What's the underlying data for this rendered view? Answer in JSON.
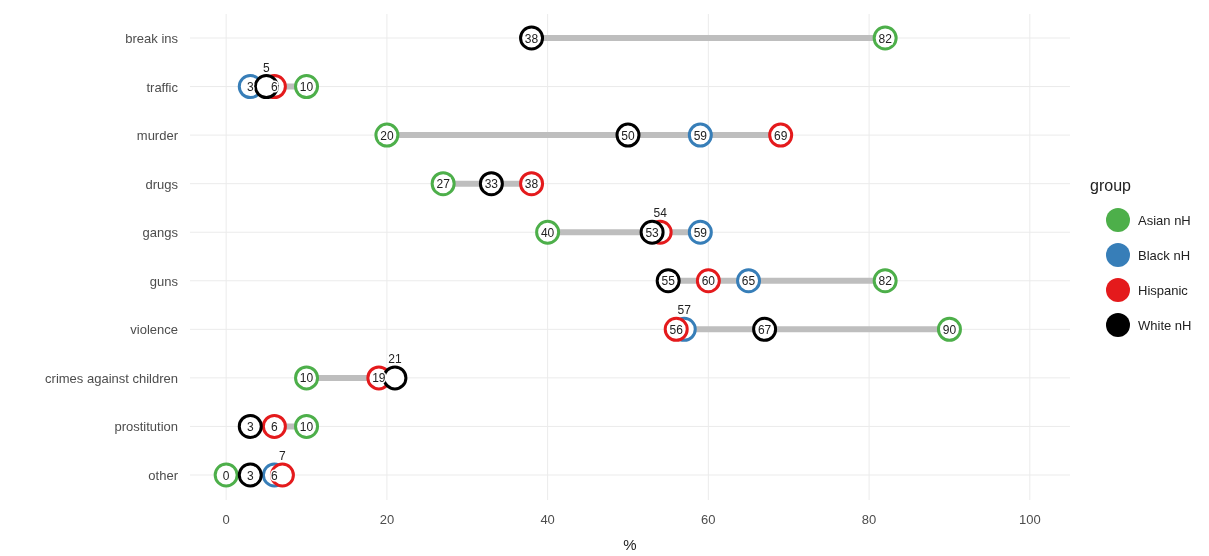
{
  "chart_data": {
    "type": "scatter",
    "orientation": "horizontal",
    "xlabel": "%",
    "legend_title": "group",
    "legend": "right",
    "grid": true,
    "marker": "circle",
    "data_labels": true,
    "categories": [
      "break ins",
      "traffic",
      "murder",
      "drugs",
      "gangs",
      "guns",
      "violence",
      "crimes against children",
      "prostitution",
      "other"
    ],
    "xlim": [
      -4.5,
      105
    ],
    "xticks": [
      0,
      20,
      40,
      60,
      80,
      100
    ],
    "series": [
      {
        "name": "Asian nH",
        "color": "#4daf4a",
        "values": [
          82,
          10,
          20,
          27,
          40,
          82,
          90,
          10,
          10,
          0
        ]
      },
      {
        "name": "Black nH",
        "color": "#377eb8",
        "values": [
          null,
          3,
          59,
          null,
          59,
          65,
          57,
          null,
          null,
          6
        ]
      },
      {
        "name": "Hispanic",
        "color": "#e41a1c",
        "values": [
          null,
          6,
          69,
          38,
          54,
          60,
          56,
          19,
          6,
          7
        ]
      },
      {
        "name": "White nH",
        "color": "#000000",
        "values": [
          38,
          5,
          50,
          33,
          53,
          55,
          67,
          21,
          3,
          3
        ]
      }
    ]
  }
}
